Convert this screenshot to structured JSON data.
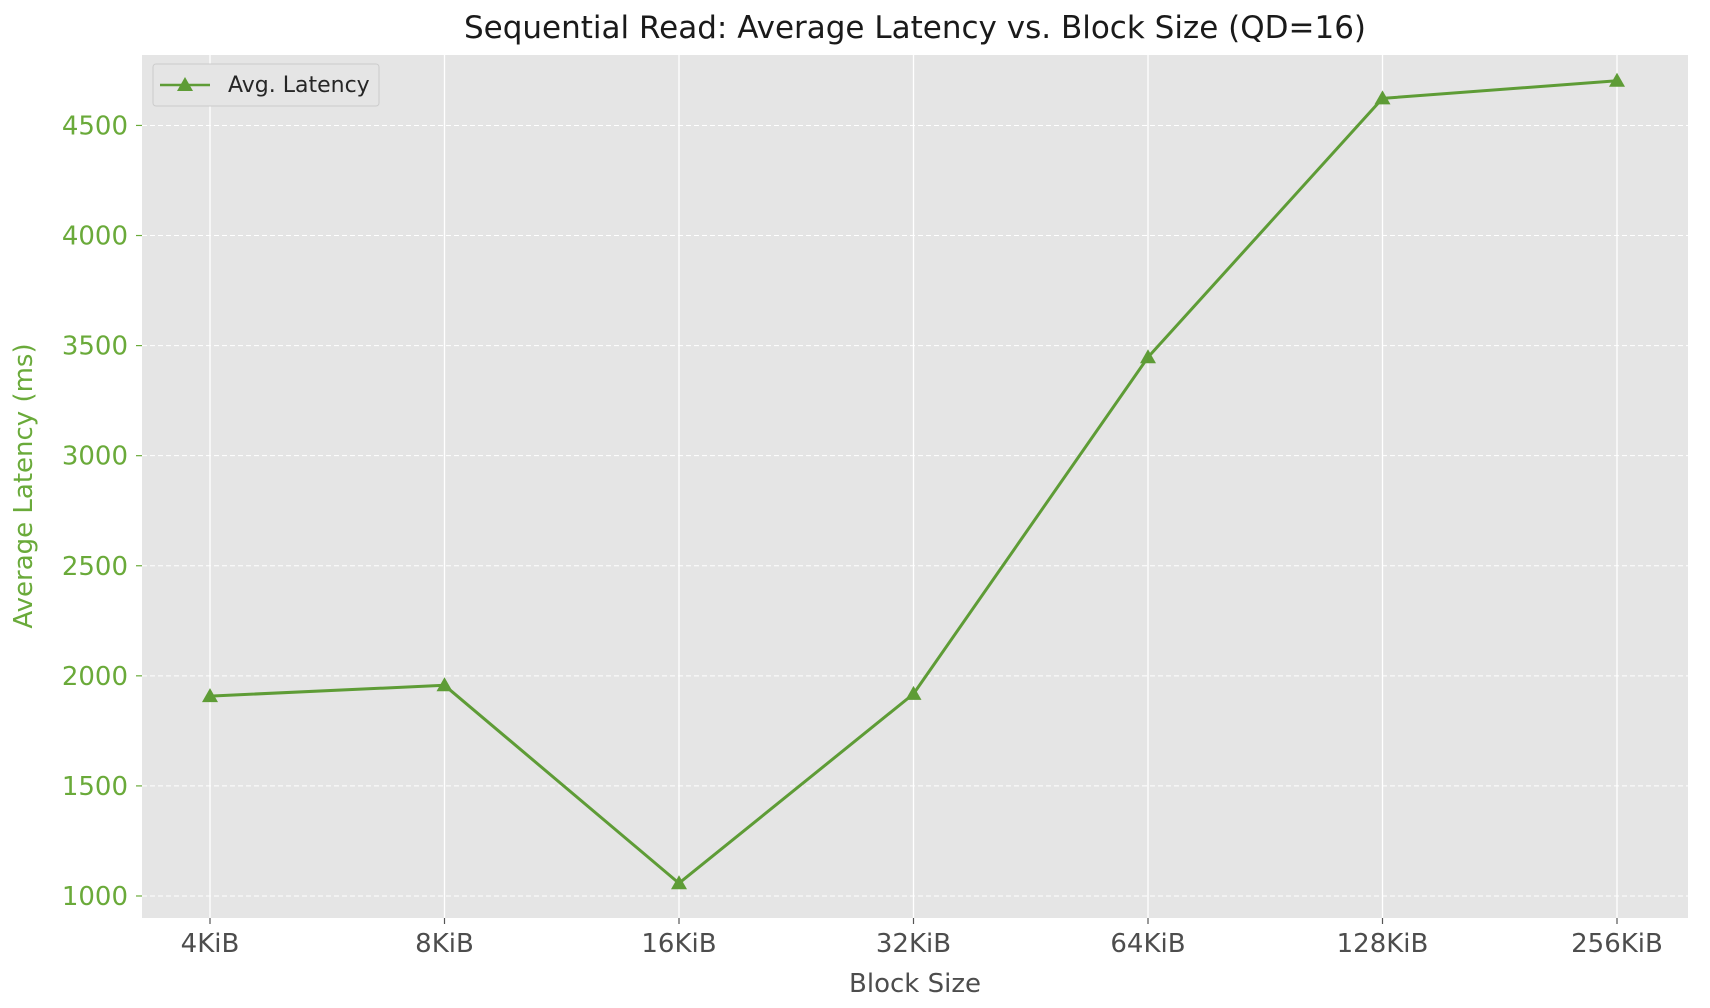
{
  "chart_data": {
    "type": "line",
    "title": "Sequential Read: Average Latency vs. Block Size (QD=16)",
    "xlabel": "Block Size",
    "ylabel": "Average Latency (ms)",
    "categories": [
      "4KiB",
      "8KiB",
      "16KiB",
      "32KiB",
      "64KiB",
      "128KiB",
      "256KiB"
    ],
    "series": [
      {
        "name": "Avg. Latency",
        "values": [
          1908,
          1957,
          1058,
          1918,
          3447,
          4623,
          4703
        ],
        "color": "#5e9c36",
        "marker": "triangle"
      }
    ],
    "yticks": [
      1000,
      1500,
      2000,
      2500,
      3000,
      3500,
      4000,
      4500
    ],
    "ylim": [
      900,
      4820
    ],
    "grid": true,
    "legend_position": "top-left",
    "background_color": "#e5e5e5",
    "accent_color": "#6aaa3a"
  }
}
